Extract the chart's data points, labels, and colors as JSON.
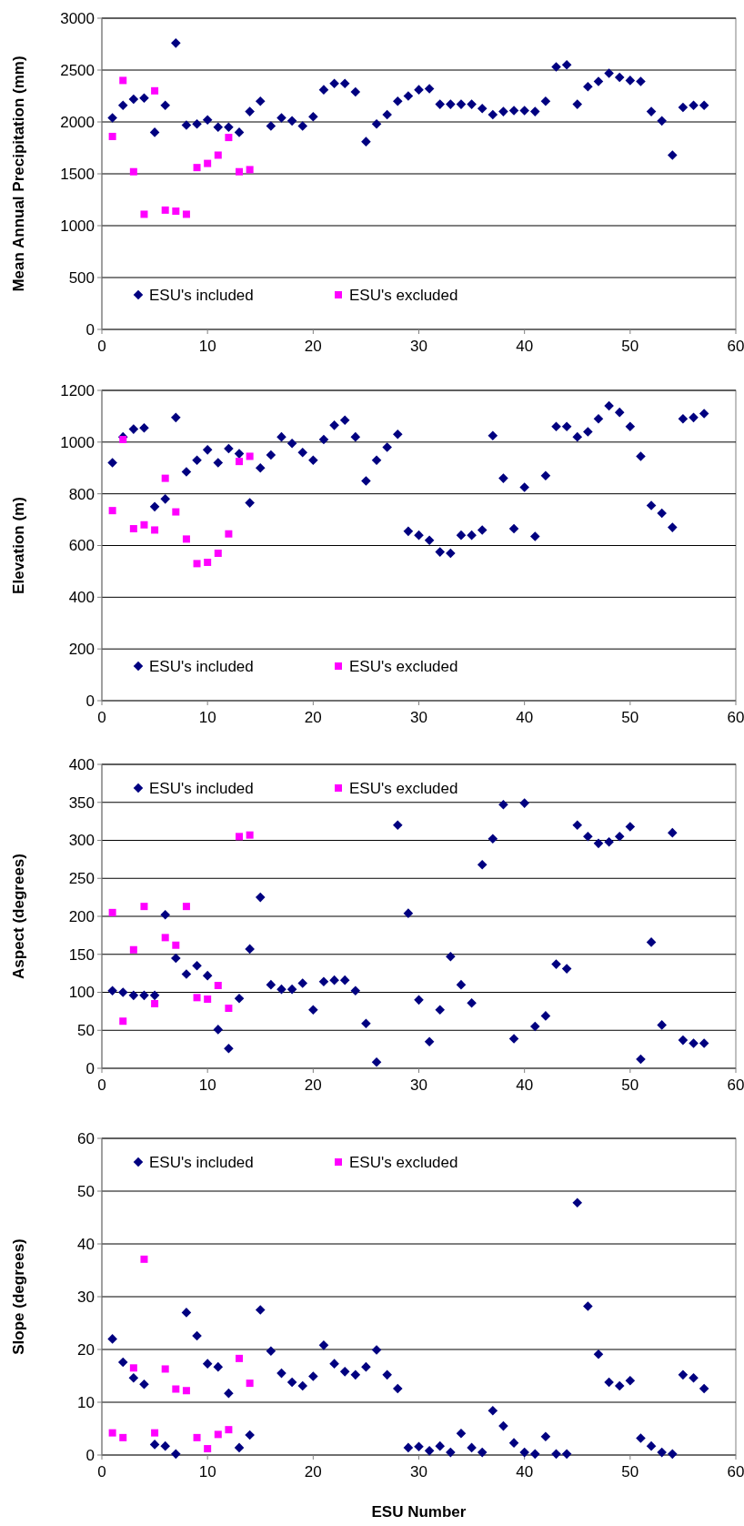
{
  "chart_data": [
    {
      "type": "scatter",
      "ylabel": "Mean Annual Precipitation (mm)",
      "xlim": [
        0,
        60
      ],
      "xticks": [
        0,
        10,
        20,
        30,
        40,
        50,
        60
      ],
      "ylim": [
        0,
        3000
      ],
      "yticks": [
        0,
        500,
        1000,
        1500,
        2000,
        2500,
        3000
      ],
      "grid": "y",
      "legend": "bottom left",
      "x": [
        1,
        2,
        3,
        4,
        5,
        6,
        7,
        8,
        9,
        10,
        11,
        12,
        13,
        14,
        15,
        16,
        17,
        18,
        19,
        20,
        21,
        22,
        23,
        24,
        25,
        26,
        27,
        28,
        29,
        30,
        31,
        32,
        33,
        34,
        35,
        36,
        37,
        38,
        39,
        40,
        41,
        42,
        43,
        44,
        45,
        46,
        47,
        48,
        49,
        50,
        51,
        52,
        53,
        54,
        55,
        56,
        57
      ],
      "series": [
        {
          "name": "ESU's included",
          "color": "#000080",
          "marker": "diamond",
          "values": [
            2040,
            2160,
            2220,
            2230,
            1900,
            2160,
            2760,
            1970,
            1980,
            2020,
            1950,
            1950,
            1900,
            2100,
            2200,
            1960,
            2040,
            2010,
            1960,
            2050,
            2310,
            2370,
            2370,
            2290,
            1810,
            1980,
            2070,
            2200,
            2250,
            2310,
            2320,
            2170,
            2170,
            2170,
            2170,
            2130,
            2070,
            2100,
            2110,
            2110,
            2100,
            2200,
            2530,
            2550,
            2170,
            2340,
            2390,
            2470,
            2430,
            2400,
            2390,
            2100,
            2010,
            1680,
            2140,
            2160,
            2160
          ]
        },
        {
          "name": "ESU's excluded",
          "color": "#ff00ff",
          "marker": "square",
          "x": [
            1,
            2,
            3,
            4,
            5,
            6,
            7,
            8,
            9,
            10,
            11,
            12,
            13,
            14
          ],
          "values": [
            1860,
            2400,
            1520,
            1110,
            2300,
            1150,
            1140,
            1110,
            1560,
            1600,
            1680,
            1850,
            1520,
            1540
          ]
        }
      ]
    },
    {
      "type": "scatter",
      "ylabel": "Elevation (m)",
      "xlim": [
        0,
        60
      ],
      "xticks": [
        0,
        10,
        20,
        30,
        40,
        50,
        60
      ],
      "ylim": [
        0,
        1200
      ],
      "yticks": [
        0,
        200,
        400,
        600,
        800,
        1000,
        1200
      ],
      "grid": "y",
      "legend": "bottom left",
      "x": [
        1,
        2,
        3,
        4,
        5,
        6,
        7,
        8,
        9,
        10,
        11,
        12,
        13,
        14,
        15,
        16,
        17,
        18,
        19,
        20,
        21,
        22,
        23,
        24,
        25,
        26,
        27,
        28,
        29,
        30,
        31,
        32,
        33,
        34,
        35,
        36,
        37,
        38,
        39,
        40,
        41,
        42,
        43,
        44,
        45,
        46,
        47,
        48,
        49,
        50,
        51,
        52,
        53,
        54,
        55,
        56,
        57
      ],
      "series": [
        {
          "name": "ESU's included",
          "color": "#000080",
          "marker": "diamond",
          "values": [
            920,
            1020,
            1050,
            1055,
            750,
            780,
            1095,
            885,
            930,
            970,
            920,
            975,
            955,
            765,
            900,
            950,
            1020,
            995,
            960,
            930,
            1010,
            1065,
            1085,
            1020,
            850,
            930,
            980,
            1030,
            655,
            640,
            620,
            575,
            570,
            640,
            640,
            660,
            1025,
            860,
            665,
            825,
            635,
            870,
            1060,
            1060,
            1020,
            1040,
            1090,
            1140,
            1115,
            1060,
            945,
            755,
            725,
            670,
            1090,
            1095,
            1110
          ]
        },
        {
          "name": "ESU's excluded",
          "color": "#ff00ff",
          "marker": "square",
          "x": [
            1,
            2,
            3,
            4,
            5,
            6,
            7,
            8,
            9,
            10,
            11,
            12,
            13,
            14
          ],
          "values": [
            735,
            1010,
            665,
            680,
            660,
            860,
            730,
            625,
            530,
            535,
            570,
            645,
            925,
            945
          ]
        }
      ]
    },
    {
      "type": "scatter",
      "ylabel": "Aspect (degrees)",
      "xlim": [
        0,
        60
      ],
      "xticks": [
        0,
        10,
        20,
        30,
        40,
        50,
        60
      ],
      "ylim": [
        0,
        400
      ],
      "yticks": [
        0,
        50,
        100,
        150,
        200,
        250,
        300,
        350,
        400
      ],
      "grid": "y",
      "legend": "top left",
      "series": [
        {
          "name": "ESU's included",
          "color": "#000080",
          "marker": "diamond",
          "x": [
            1,
            2,
            3,
            4,
            5,
            6,
            7,
            8,
            9,
            10,
            11,
            12,
            13,
            14,
            15,
            16,
            17,
            18,
            19,
            20,
            21,
            22,
            23,
            24,
            25,
            26,
            28,
            29,
            30,
            31,
            32,
            33,
            34,
            35,
            36,
            37,
            38,
            39,
            40,
            41,
            42,
            43,
            44,
            45,
            46,
            47,
            48,
            49,
            50,
            51,
            52,
            53,
            54,
            55,
            56,
            57
          ],
          "values": [
            102,
            100,
            96,
            96,
            96,
            202,
            145,
            124,
            135,
            122,
            51,
            26,
            92,
            157,
            225,
            110,
            104,
            104,
            112,
            77,
            114,
            116,
            116,
            102,
            59,
            8,
            320,
            204,
            90,
            35,
            77,
            147,
            110,
            86,
            268,
            302,
            347,
            39,
            349,
            55,
            69,
            137,
            131,
            320,
            305,
            296,
            298,
            305,
            318,
            12,
            166,
            57,
            310,
            37,
            33,
            33
          ]
        },
        {
          "name": "ESU's excluded",
          "color": "#ff00ff",
          "marker": "square",
          "x": [
            1,
            2,
            3,
            4,
            5,
            6,
            7,
            8,
            9,
            10,
            11,
            12,
            13,
            14
          ],
          "values": [
            205,
            62,
            156,
            213,
            85,
            172,
            162,
            213,
            93,
            91,
            109,
            79,
            305,
            307
          ]
        }
      ]
    },
    {
      "type": "scatter",
      "ylabel": "Slope (degrees)",
      "xlabel": "ESU Number",
      "xlim": [
        0,
        60
      ],
      "xticks": [
        0,
        10,
        20,
        30,
        40,
        50,
        60
      ],
      "ylim": [
        0,
        60
      ],
      "yticks": [
        0,
        10,
        20,
        30,
        40,
        50,
        60
      ],
      "grid": "y",
      "legend": "top left",
      "x": [
        1,
        2,
        3,
        4,
        5,
        6,
        7,
        8,
        9,
        10,
        11,
        12,
        13,
        14,
        15,
        16,
        17,
        18,
        19,
        20,
        21,
        22,
        23,
        24,
        25,
        26,
        27,
        28,
        29,
        30,
        31,
        32,
        33,
        34,
        35,
        36,
        37,
        38,
        39,
        40,
        41,
        42,
        43,
        44,
        45,
        46,
        47,
        48,
        49,
        50,
        51,
        52,
        53,
        54,
        55,
        56,
        57
      ],
      "series": [
        {
          "name": "ESU's included",
          "color": "#000080",
          "marker": "diamond",
          "values": [
            22,
            17.6,
            14.6,
            13.4,
            2,
            1.7,
            0.2,
            27,
            22.6,
            17.3,
            16.7,
            11.7,
            1.4,
            3.8,
            27.5,
            19.7,
            15.5,
            13.8,
            13.1,
            14.9,
            20.8,
            17.3,
            15.8,
            15.2,
            16.7,
            19.9,
            15.2,
            12.6,
            1.4,
            1.6,
            0.8,
            1.7,
            0.5,
            4.1,
            1.4,
            0.5,
            8.4,
            5.5,
            2.3,
            0.5,
            0.2,
            3.5,
            0.2,
            0.2,
            47.8,
            28.2,
            19.1,
            13.8,
            13.1,
            14.1,
            3.2,
            1.7,
            0.5,
            0.2,
            15.2,
            14.6,
            12.6
          ]
        },
        {
          "name": "ESU's excluded",
          "color": "#ff00ff",
          "marker": "square",
          "x": [
            1,
            2,
            3,
            4,
            5,
            6,
            7,
            8,
            9,
            10,
            11,
            12,
            13,
            14
          ],
          "values": [
            4.2,
            3.3,
            16.5,
            37.1,
            4.2,
            16.3,
            12.5,
            12.2,
            3.3,
            1.2,
            3.9,
            4.8,
            18.3,
            13.6
          ]
        }
      ]
    }
  ]
}
